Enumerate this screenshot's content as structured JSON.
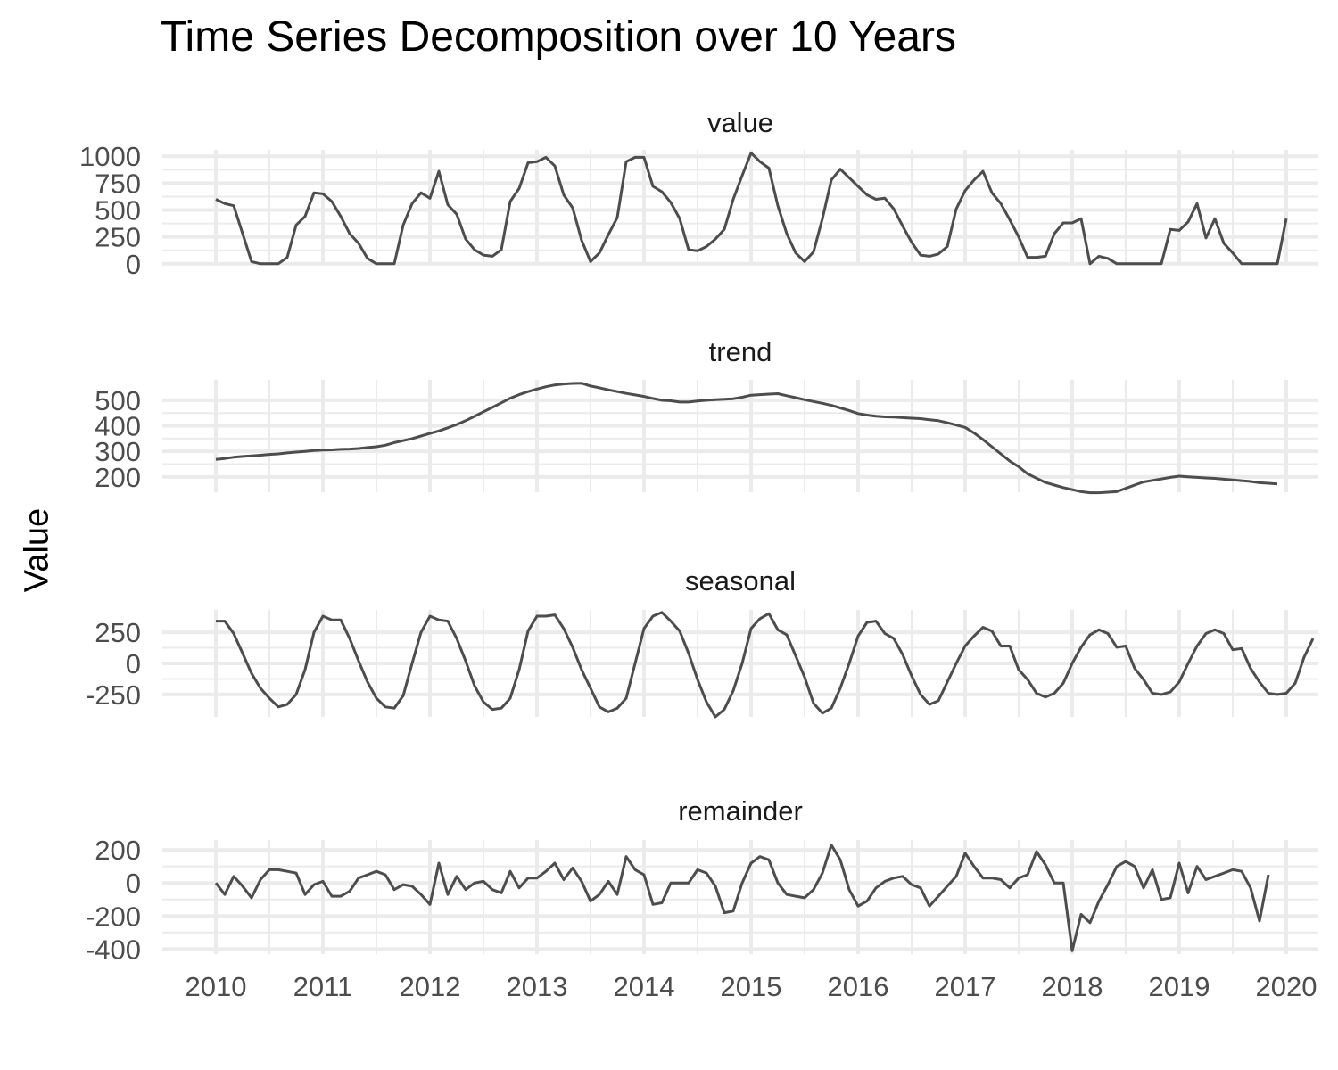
{
  "title": "Time Series Decomposition over 10 Years",
  "ylabel": "Value",
  "colors": {
    "line": "#4d4d4d",
    "grid": "#ebebeb",
    "text": "#4d4d4d"
  },
  "chart_data": {
    "type": "line",
    "xlabel": "",
    "ylabel": "Value",
    "x_ticks": [
      "2010",
      "2011",
      "2012",
      "2013",
      "2014",
      "2015",
      "2016",
      "2017",
      "2018",
      "2019",
      "2020"
    ],
    "xlim": [
      2009.5,
      2020.3
    ],
    "x_start": 2010.0,
    "x_step": 0.08333,
    "grid": true,
    "panels": [
      {
        "name": "value",
        "ylim": [
          -10,
          1060
        ],
        "yticks": [
          0,
          250,
          500,
          750,
          1000
        ],
        "values": [
          600,
          560,
          540,
          280,
          20,
          0,
          0,
          0,
          60,
          360,
          440,
          660,
          650,
          580,
          440,
          280,
          190,
          50,
          0,
          0,
          0,
          360,
          560,
          660,
          610,
          860,
          550,
          460,
          230,
          130,
          80,
          70,
          130,
          580,
          700,
          940,
          950,
          990,
          910,
          640,
          520,
          220,
          20,
          100,
          270,
          430,
          950,
          990,
          990,
          720,
          670,
          570,
          420,
          130,
          120,
          160,
          230,
          320,
          600,
          820,
          1030,
          950,
          890,
          540,
          280,
          100,
          20,
          110,
          420,
          780,
          880,
          800,
          720,
          640,
          600,
          610,
          510,
          350,
          200,
          80,
          70,
          90,
          160,
          510,
          680,
          780,
          860,
          660,
          560,
          410,
          250,
          60,
          60,
          70,
          280,
          380,
          380,
          420,
          0,
          70,
          50,
          0,
          0,
          0,
          0,
          0,
          0,
          320,
          310,
          390,
          560,
          240,
          420,
          190,
          100,
          0,
          0,
          0,
          0,
          0,
          420
        ]
      },
      {
        "name": "trend",
        "ylim": [
          140,
          580
        ],
        "yticks": [
          200,
          300,
          400,
          500
        ],
        "values": [
          268,
          272,
          277,
          280,
          282,
          285,
          288,
          290,
          294,
          297,
          300,
          303,
          305,
          306,
          308,
          309,
          311,
          315,
          318,
          324,
          334,
          342,
          350,
          360,
          370,
          380,
          392,
          405,
          420,
          437,
          455,
          472,
          490,
          508,
          522,
          534,
          544,
          553,
          560,
          564,
          566,
          567,
          556,
          549,
          541,
          534,
          527,
          521,
          515,
          507,
          500,
          498,
          493,
          493,
          497,
          500,
          502,
          504,
          506,
          512,
          520,
          522,
          524,
          526,
          518,
          510,
          502,
          495,
          488,
          480,
          470,
          460,
          448,
          442,
          438,
          435,
          434,
          432,
          430,
          428,
          424,
          420,
          412,
          403,
          394,
          372,
          346,
          318,
          290,
          262,
          240,
          212,
          195,
          178,
          168,
          158,
          150,
          142,
          138,
          138,
          140,
          142,
          155,
          168,
          180,
          186,
          192,
          198,
          203,
          200,
          198,
          196,
          194,
          191,
          188,
          185,
          182,
          177,
          175,
          172
        ]
      },
      {
        "name": "seasonal",
        "ylim": [
          -430,
          430
        ],
        "yticks": [
          -250,
          0,
          250
        ],
        "values": [
          340,
          340,
          240,
          80,
          -80,
          -200,
          -280,
          -350,
          -330,
          -250,
          -50,
          250,
          380,
          350,
          350,
          200,
          20,
          -150,
          -280,
          -350,
          -360,
          -260,
          0,
          250,
          380,
          350,
          340,
          200,
          20,
          -180,
          -310,
          -370,
          -360,
          -280,
          -50,
          260,
          380,
          380,
          390,
          280,
          130,
          -50,
          -200,
          -350,
          -390,
          -360,
          -280,
          0,
          280,
          380,
          410,
          340,
          260,
          80,
          -130,
          -310,
          -430,
          -370,
          -220,
          0,
          280,
          360,
          400,
          270,
          230,
          60,
          -110,
          -320,
          -400,
          -360,
          -200,
          0,
          220,
          330,
          340,
          240,
          200,
          70,
          -100,
          -250,
          -330,
          -300,
          -150,
          0,
          140,
          220,
          290,
          260,
          140,
          140,
          -50,
          -130,
          -240,
          -270,
          -240,
          -160,
          0,
          130,
          230,
          270,
          240,
          130,
          140,
          -40,
          -130,
          -240,
          -250,
          -230,
          -150,
          0,
          140,
          240,
          270,
          240,
          110,
          120,
          -40,
          -150,
          -240,
          -250,
          -240,
          -160,
          50,
          200
        ]
      },
      {
        "name": "remainder",
        "ylim": [
          -430,
          260
        ],
        "yticks": [
          -400,
          -200,
          0,
          200
        ],
        "values": [
          0,
          -70,
          40,
          -20,
          -90,
          20,
          80,
          80,
          70,
          60,
          -70,
          -10,
          10,
          -80,
          -80,
          -50,
          30,
          50,
          70,
          50,
          -40,
          -10,
          -20,
          -70,
          -130,
          120,
          -70,
          40,
          -40,
          0,
          10,
          -40,
          -60,
          70,
          -30,
          30,
          30,
          70,
          120,
          20,
          90,
          10,
          -110,
          -70,
          10,
          -70,
          160,
          80,
          50,
          -130,
          -120,
          0,
          0,
          0,
          80,
          60,
          -20,
          -180,
          -170,
          0,
          120,
          160,
          140,
          0,
          -70,
          -80,
          -90,
          -40,
          60,
          230,
          140,
          -40,
          -140,
          -110,
          -30,
          10,
          30,
          40,
          -10,
          -30,
          -140,
          -80,
          -20,
          40,
          180,
          100,
          30,
          30,
          20,
          -30,
          30,
          50,
          190,
          110,
          0,
          0,
          -410,
          -190,
          -240,
          -110,
          -10,
          100,
          130,
          100,
          -30,
          80,
          -100,
          -90,
          120,
          -60,
          100,
          20,
          40,
          60,
          80,
          70,
          -30,
          -230,
          50
        ]
      }
    ]
  }
}
